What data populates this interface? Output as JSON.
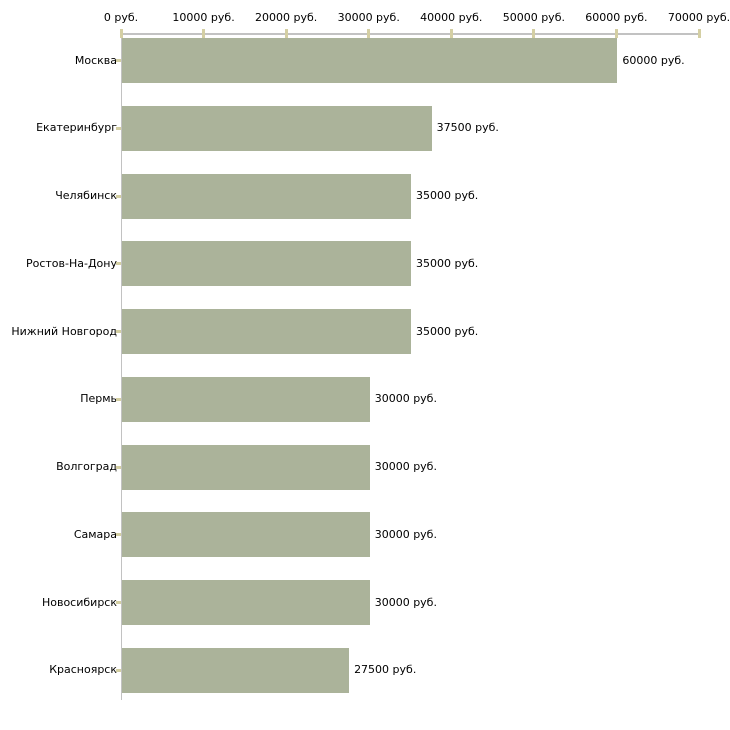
{
  "chart_data": {
    "type": "bar",
    "orientation": "horizontal",
    "title": "",
    "categories": [
      "Москва",
      "Екатеринбург",
      "Челябинск",
      "Ростов-На-Дону",
      "Нижний Новгород",
      "Пермь",
      "Волгоград",
      "Самара",
      "Новосибирск",
      "Красноярск"
    ],
    "values": [
      60000,
      37500,
      35000,
      35000,
      35000,
      30000,
      30000,
      30000,
      30000,
      27500
    ],
    "value_labels": [
      "60000 руб.",
      "37500 руб.",
      "35000 руб.",
      "35000 руб.",
      "35000 руб.",
      "30000 руб.",
      "30000 руб.",
      "30000 руб.",
      "30000 руб.",
      "27500 руб."
    ],
    "x_axis": {
      "position": "top",
      "min": 0,
      "max": 70000,
      "tick_values": [
        0,
        10000,
        20000,
        30000,
        40000,
        50000,
        60000,
        70000
      ],
      "tick_labels": [
        "0 руб.",
        "10000 руб.",
        "20000 руб.",
        "30000 руб.",
        "40000 руб.",
        "50000 руб.",
        "60000 руб.",
        "70000 руб."
      ]
    },
    "grid": false,
    "legend": false,
    "colors": {
      "bar": "#abb39a",
      "axis_line": "#c2c2c2",
      "tick_mark": "#d4cfa3",
      "text": "#000000",
      "background": "#ffffff"
    }
  }
}
